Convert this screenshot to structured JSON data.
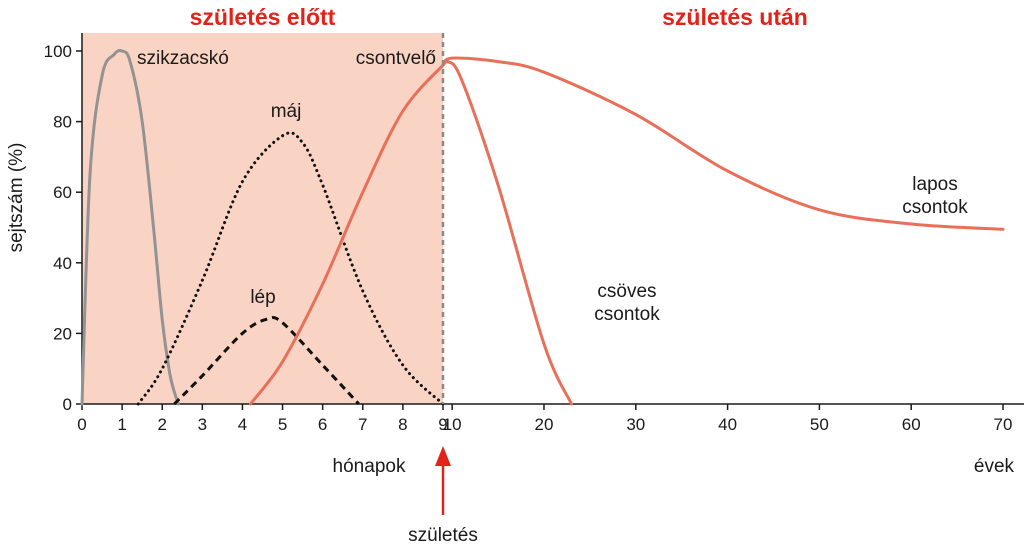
{
  "chart_data": {
    "type": "line",
    "title_left": "születés előtt",
    "title_right": "születés után",
    "ylabel": "sejtszám (%)",
    "xlabel_left": "hónapok",
    "xlabel_right": "évek",
    "birth_label": "születés",
    "ylim": [
      0,
      100
    ],
    "yticks": [
      "0",
      "20",
      "40",
      "60",
      "80",
      "100"
    ],
    "xticks_months": [
      "0",
      "1",
      "2",
      "3",
      "4",
      "5",
      "6",
      "7",
      "8",
      "9"
    ],
    "xticks_years": [
      "10",
      "20",
      "30",
      "40",
      "50",
      "60",
      "70"
    ],
    "colors": {
      "prenatal_shade": "#f9d3c3",
      "title": "#e2231a",
      "birth_arrow": "#e2231a",
      "szikzacsko": "#939393",
      "bone": "#e8705a",
      "dark": "#111111"
    },
    "annotations": {
      "szikzacsko": "szikzacskó",
      "maj": "máj",
      "lep": "lép",
      "csontvelo": "csontvelő",
      "csoves_1": "csöves",
      "csoves_2": "csontok",
      "lapos_1": "lapos",
      "lapos_2": "csontok"
    },
    "series": [
      {
        "key": "szikzacsko",
        "style": "solid",
        "color": "#939393",
        "x": [
          "0 hó",
          "0.2 hó",
          "0.5 hó",
          "0.8 hó",
          "1 hó",
          "1.2 hó",
          "1.5 hó",
          "1.8 hó",
          "2 hó",
          "2.2 hó",
          "2.4 hó"
        ],
        "y": [
          0,
          65,
          93,
          99,
          100,
          97,
          80,
          48,
          24,
          8,
          0
        ]
      },
      {
        "key": "maj",
        "style": "dotted",
        "color": "#111111",
        "x": [
          "1.4 hó",
          "2 hó",
          "3 hó",
          "4 hó",
          "5 hó",
          "5.5 hó",
          "6 hó",
          "7 hó",
          "8 hó",
          "9 hó"
        ],
        "y": [
          0,
          10,
          35,
          63,
          76,
          74,
          62,
          32,
          11,
          0
        ]
      },
      {
        "key": "lep",
        "style": "dashed",
        "color": "#111111",
        "x": [
          "2.3 hó",
          "3 hó",
          "4 hó",
          "4.6 hó",
          "5 hó",
          "6 hó",
          "6.9 hó"
        ],
        "y": [
          0,
          8,
          20,
          24,
          23,
          11,
          0
        ]
      },
      {
        "key": "csoves_csontok",
        "style": "solid",
        "color": "#e8705a",
        "x": [
          "4.2 hó",
          "5 hó",
          "6 hó",
          "7 hó",
          "8 hó",
          "9 hó",
          "9.5 év",
          "11 év",
          "15 év",
          "20 év",
          "23 év"
        ],
        "y": [
          0,
          12,
          34,
          60,
          83,
          96,
          97,
          92,
          62,
          17,
          0
        ]
      },
      {
        "key": "lapos_csontok",
        "style": "solid",
        "color": "#e8705a",
        "x": [
          "9 hó",
          "10 év",
          "15 év",
          "20 év",
          "30 év",
          "40 év",
          "50 év",
          "60 év",
          "70 év"
        ],
        "y": [
          96,
          98,
          97,
          94,
          82,
          66,
          55,
          51,
          49.5
        ]
      }
    ]
  }
}
